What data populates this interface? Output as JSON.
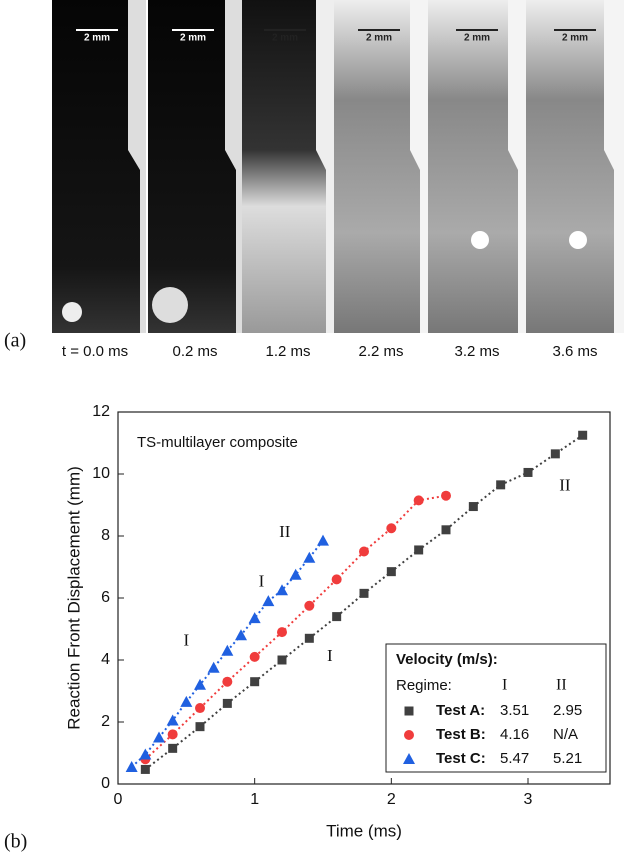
{
  "panel_a": {
    "label": "(a)",
    "scale_bar": "2 mm",
    "frames": [
      "t = 0.0 ms",
      "0.2 ms",
      "1.2 ms",
      "2.2 ms",
      "3.2 ms",
      "3.6 ms"
    ]
  },
  "panel_b": {
    "label": "(b)"
  },
  "chart_data": {
    "type": "scatter",
    "title": "TS-multilayer composite",
    "x_label": "Time (ms)",
    "y_label": "Reaction Front Displacement (mm)",
    "xlim": [
      0,
      3.6
    ],
    "xticks": [
      0,
      1,
      2,
      3
    ],
    "ylim": [
      0,
      12
    ],
    "yticks": [
      0,
      2,
      4,
      6,
      8,
      10,
      12
    ],
    "legend_title": "Velocity (m/s):",
    "legend_header": [
      "Regime:",
      "I",
      "II"
    ],
    "series": [
      {
        "name": "Test A:",
        "color": "#404040",
        "marker": "square",
        "velocity": [
          3.51,
          2.95
        ],
        "x": [
          0.2,
          0.4,
          0.6,
          0.8,
          1.0,
          1.2,
          1.4,
          1.6,
          1.8,
          2.0,
          2.2,
          2.4,
          2.6,
          2.8,
          3.0,
          3.2,
          3.4
        ],
        "values": [
          0.47,
          1.15,
          1.85,
          2.6,
          3.3,
          4.0,
          4.7,
          5.4,
          6.15,
          6.85,
          7.55,
          8.2,
          8.95,
          9.65,
          10.05,
          10.65,
          11.25
        ]
      },
      {
        "name": "Test B:",
        "color": "#f03c3c",
        "marker": "circle",
        "velocity": [
          4.16,
          "N/A"
        ],
        "x": [
          0.2,
          0.4,
          0.6,
          0.8,
          1.0,
          1.2,
          1.4,
          1.6,
          1.8,
          2.0,
          2.2,
          2.4
        ],
        "values": [
          0.8,
          1.6,
          2.45,
          3.3,
          4.1,
          4.9,
          5.75,
          6.6,
          7.5,
          8.25,
          9.15,
          9.3
        ]
      },
      {
        "name": "Test C:",
        "color": "#2060e0",
        "marker": "triangle",
        "velocity": [
          5.47,
          5.21
        ],
        "x": [
          0.1,
          0.2,
          0.3,
          0.4,
          0.5,
          0.6,
          0.7,
          0.8,
          0.9,
          1.0,
          1.1,
          1.2,
          1.3,
          1.4,
          1.5
        ],
        "values": [
          0.55,
          0.95,
          1.5,
          2.05,
          2.65,
          3.2,
          3.75,
          4.3,
          4.8,
          5.35,
          5.9,
          6.25,
          6.75,
          7.3,
          7.85
        ]
      }
    ],
    "annotations": [
      {
        "text": "I",
        "x": 0.5,
        "y": 4.6
      },
      {
        "text": "II",
        "x": 1.22,
        "y": 8.1
      },
      {
        "text": "I",
        "x": 1.05,
        "y": 6.5
      },
      {
        "text": "I",
        "x": 1.55,
        "y": 4.1
      },
      {
        "text": "II",
        "x": 3.27,
        "y": 9.6
      }
    ]
  }
}
